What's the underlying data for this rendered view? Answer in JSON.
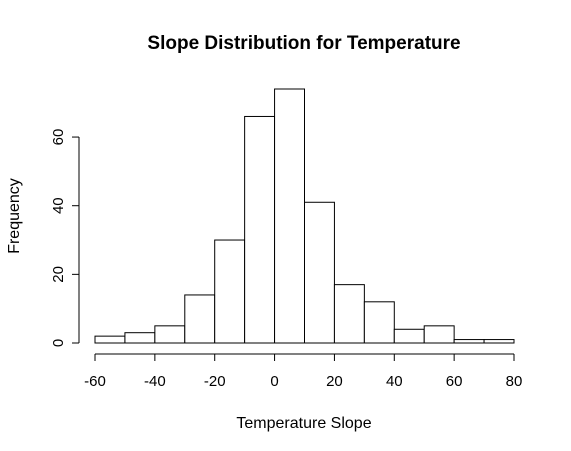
{
  "chart_data": {
    "type": "bar",
    "subtype": "histogram",
    "title": "Slope Distribution for Temperature",
    "xlabel": "Temperature Slope",
    "ylabel": "Frequency",
    "bins": [
      {
        "from": -60,
        "to": -50,
        "count": 2
      },
      {
        "from": -50,
        "to": -40,
        "count": 3
      },
      {
        "from": -40,
        "to": -30,
        "count": 5
      },
      {
        "from": -30,
        "to": -20,
        "count": 14
      },
      {
        "from": -20,
        "to": -10,
        "count": 30
      },
      {
        "from": -10,
        "to": 0,
        "count": 66
      },
      {
        "from": 0,
        "to": 10,
        "count": 74
      },
      {
        "from": 10,
        "to": 20,
        "count": 41
      },
      {
        "from": 20,
        "to": 30,
        "count": 17
      },
      {
        "from": 30,
        "to": 40,
        "count": 12
      },
      {
        "from": 40,
        "to": 50,
        "count": 4
      },
      {
        "from": 50,
        "to": 60,
        "count": 5
      },
      {
        "from": 60,
        "to": 70,
        "count": 1
      },
      {
        "from": 70,
        "to": 80,
        "count": 1
      }
    ],
    "xlim": [
      -60,
      80
    ],
    "ylim": [
      0,
      74
    ],
    "x_ticks": [
      -60,
      -40,
      -20,
      0,
      20,
      40,
      60,
      80
    ],
    "y_ticks": [
      0,
      20,
      40,
      60
    ],
    "grid": false,
    "legend": "none",
    "bar_fill": "#ffffff",
    "bar_stroke": "#000000"
  }
}
